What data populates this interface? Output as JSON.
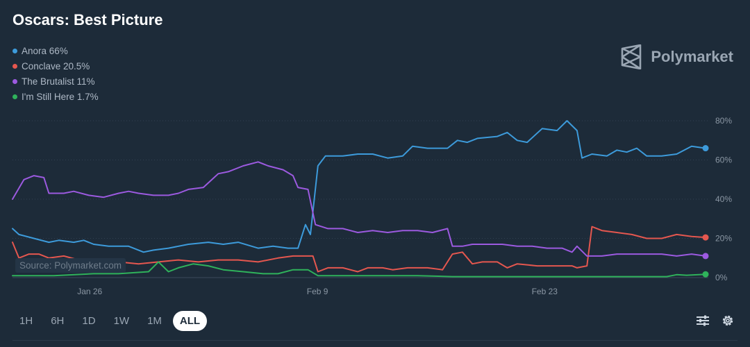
{
  "title": "Oscars: Best Picture",
  "brand": {
    "name": "Polymarket",
    "icon": "polymarket-logo-icon"
  },
  "source": "Source: Polymarket.com",
  "legend": [
    {
      "label": "Anora 66%",
      "color": "#3d9bdb"
    },
    {
      "label": "Conclave 20.5%",
      "color": "#e5574f"
    },
    {
      "label": "The Brutalist 11%",
      "color": "#9c5ae0"
    },
    {
      "label": "I'm Still Here 1.7%",
      "color": "#2fb25b"
    }
  ],
  "time_ranges": [
    "1H",
    "6H",
    "1D",
    "1W",
    "1M",
    "ALL"
  ],
  "active_range": "ALL",
  "tools": {
    "filter_icon": "sliders-icon",
    "settings_icon": "gear-icon"
  },
  "chart_data": {
    "type": "line",
    "title": "Oscars: Best Picture",
    "x_labels": [
      "Jan 26",
      "Feb 9",
      "Feb 23"
    ],
    "x_label_positions": [
      0.22,
      4.79,
      9.35
    ],
    "x_range": [
      -1.33,
      12.58
    ],
    "y_ticks": [
      "0%",
      "20%",
      "40%",
      "60%",
      "80%"
    ],
    "y_tick_values": [
      0,
      20,
      40,
      60,
      80
    ],
    "ylim": [
      0,
      80
    ],
    "grid": "horizontal dotted",
    "series": [
      {
        "name": "Anora",
        "color": "#3d9bdb",
        "points": [
          [
            -1.33,
            25
          ],
          [
            -1.2,
            22
          ],
          [
            -0.9,
            20
          ],
          [
            -0.6,
            18
          ],
          [
            -0.4,
            19
          ],
          [
            -0.1,
            18
          ],
          [
            0.1,
            19
          ],
          [
            0.3,
            17
          ],
          [
            0.6,
            16
          ],
          [
            1.0,
            16
          ],
          [
            1.3,
            13
          ],
          [
            1.5,
            14
          ],
          [
            1.8,
            15
          ],
          [
            2.2,
            17
          ],
          [
            2.6,
            18
          ],
          [
            2.9,
            17
          ],
          [
            3.2,
            18
          ],
          [
            3.6,
            15
          ],
          [
            3.9,
            16
          ],
          [
            4.2,
            15
          ],
          [
            4.4,
            15
          ],
          [
            4.55,
            27
          ],
          [
            4.65,
            22
          ],
          [
            4.8,
            57
          ],
          [
            4.95,
            62
          ],
          [
            5.3,
            62
          ],
          [
            5.6,
            63
          ],
          [
            5.9,
            63
          ],
          [
            6.2,
            61
          ],
          [
            6.5,
            62
          ],
          [
            6.7,
            67
          ],
          [
            7.0,
            66
          ],
          [
            7.4,
            66
          ],
          [
            7.6,
            70
          ],
          [
            7.8,
            69
          ],
          [
            8.0,
            71
          ],
          [
            8.4,
            72
          ],
          [
            8.6,
            74
          ],
          [
            8.8,
            70
          ],
          [
            9.0,
            69
          ],
          [
            9.3,
            76
          ],
          [
            9.6,
            75
          ],
          [
            9.8,
            80
          ],
          [
            10.0,
            75
          ],
          [
            10.1,
            61
          ],
          [
            10.3,
            63
          ],
          [
            10.6,
            62
          ],
          [
            10.8,
            65
          ],
          [
            11.0,
            64
          ],
          [
            11.2,
            66
          ],
          [
            11.4,
            62
          ],
          [
            11.7,
            62
          ],
          [
            12.0,
            63
          ],
          [
            12.3,
            67
          ],
          [
            12.58,
            66
          ]
        ]
      },
      {
        "name": "Conclave",
        "color": "#e5574f",
        "points": [
          [
            -1.33,
            18
          ],
          [
            -1.2,
            10
          ],
          [
            -1.0,
            12
          ],
          [
            -0.8,
            12
          ],
          [
            -0.6,
            10
          ],
          [
            -0.3,
            11
          ],
          [
            0.0,
            9
          ],
          [
            0.4,
            9
          ],
          [
            0.8,
            8
          ],
          [
            1.2,
            7
          ],
          [
            1.6,
            8
          ],
          [
            2.0,
            9
          ],
          [
            2.4,
            8
          ],
          [
            2.8,
            9
          ],
          [
            3.2,
            9
          ],
          [
            3.6,
            8
          ],
          [
            4.0,
            10
          ],
          [
            4.3,
            11
          ],
          [
            4.7,
            11
          ],
          [
            4.8,
            3
          ],
          [
            5.0,
            5
          ],
          [
            5.3,
            5
          ],
          [
            5.6,
            3
          ],
          [
            5.8,
            5
          ],
          [
            6.1,
            5
          ],
          [
            6.3,
            4
          ],
          [
            6.6,
            5
          ],
          [
            7.0,
            5
          ],
          [
            7.3,
            4
          ],
          [
            7.5,
            12
          ],
          [
            7.7,
            13
          ],
          [
            7.9,
            7
          ],
          [
            8.1,
            8
          ],
          [
            8.4,
            8
          ],
          [
            8.6,
            5
          ],
          [
            8.8,
            7
          ],
          [
            9.2,
            6
          ],
          [
            9.6,
            6
          ],
          [
            9.9,
            6
          ],
          [
            10.0,
            5
          ],
          [
            10.2,
            6
          ],
          [
            10.3,
            26
          ],
          [
            10.5,
            24
          ],
          [
            10.8,
            23
          ],
          [
            11.1,
            22
          ],
          [
            11.4,
            20
          ],
          [
            11.7,
            20
          ],
          [
            12.0,
            22
          ],
          [
            12.3,
            21
          ],
          [
            12.58,
            20.5
          ]
        ]
      },
      {
        "name": "The Brutalist",
        "color": "#9c5ae0",
        "points": [
          [
            -1.33,
            40
          ],
          [
            -1.1,
            50
          ],
          [
            -0.9,
            52
          ],
          [
            -0.7,
            51
          ],
          [
            -0.6,
            43
          ],
          [
            -0.3,
            43
          ],
          [
            -0.1,
            44
          ],
          [
            0.2,
            42
          ],
          [
            0.5,
            41
          ],
          [
            0.8,
            43
          ],
          [
            1.0,
            44
          ],
          [
            1.2,
            43
          ],
          [
            1.5,
            42
          ],
          [
            1.8,
            42
          ],
          [
            2.0,
            43
          ],
          [
            2.2,
            45
          ],
          [
            2.5,
            46
          ],
          [
            2.8,
            53
          ],
          [
            3.0,
            54
          ],
          [
            3.3,
            57
          ],
          [
            3.6,
            59
          ],
          [
            3.8,
            57
          ],
          [
            4.1,
            55
          ],
          [
            4.3,
            52
          ],
          [
            4.4,
            46
          ],
          [
            4.6,
            45
          ],
          [
            4.75,
            27
          ],
          [
            5.0,
            25
          ],
          [
            5.3,
            25
          ],
          [
            5.6,
            23
          ],
          [
            5.9,
            24
          ],
          [
            6.2,
            23
          ],
          [
            6.5,
            24
          ],
          [
            6.8,
            24
          ],
          [
            7.1,
            23
          ],
          [
            7.4,
            25
          ],
          [
            7.5,
            16
          ],
          [
            7.7,
            16
          ],
          [
            7.9,
            17
          ],
          [
            8.2,
            17
          ],
          [
            8.5,
            17
          ],
          [
            8.8,
            16
          ],
          [
            9.1,
            16
          ],
          [
            9.4,
            15
          ],
          [
            9.7,
            15
          ],
          [
            9.9,
            13
          ],
          [
            10.0,
            16
          ],
          [
            10.2,
            11
          ],
          [
            10.5,
            11
          ],
          [
            10.8,
            12
          ],
          [
            11.1,
            12
          ],
          [
            11.4,
            12
          ],
          [
            11.7,
            12
          ],
          [
            12.0,
            11
          ],
          [
            12.3,
            12
          ],
          [
            12.58,
            11
          ]
        ]
      },
      {
        "name": "I'm Still Here",
        "color": "#2fb25b",
        "points": [
          [
            -1.33,
            1
          ],
          [
            -0.5,
            1
          ],
          [
            0.3,
            2
          ],
          [
            0.8,
            2
          ],
          [
            1.4,
            3
          ],
          [
            1.6,
            8
          ],
          [
            1.8,
            3
          ],
          [
            2.0,
            5
          ],
          [
            2.3,
            7
          ],
          [
            2.6,
            6
          ],
          [
            2.9,
            4
          ],
          [
            3.3,
            3
          ],
          [
            3.7,
            2
          ],
          [
            4.0,
            2
          ],
          [
            4.3,
            4
          ],
          [
            4.6,
            4
          ],
          [
            4.8,
            1
          ],
          [
            5.3,
            1
          ],
          [
            6.0,
            1
          ],
          [
            6.8,
            1
          ],
          [
            7.5,
            0.5
          ],
          [
            8.2,
            0.5
          ],
          [
            9.0,
            0.5
          ],
          [
            10.0,
            0.5
          ],
          [
            11.0,
            0.5
          ],
          [
            11.8,
            0.5
          ],
          [
            12.0,
            1.5
          ],
          [
            12.2,
            1.2
          ],
          [
            12.58,
            1.7
          ]
        ]
      }
    ]
  }
}
